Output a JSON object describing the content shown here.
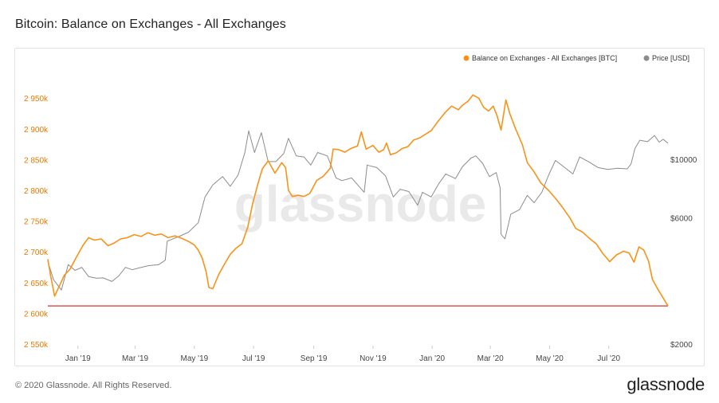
{
  "title": "Bitcoin: Balance on Exchanges - All Exchanges",
  "footer": {
    "copyright": "© 2020 Glassnode. All Rights Reserved.",
    "logo": "glassnode"
  },
  "watermark": "glassnode",
  "colors": {
    "balance": "#f7931a",
    "price": "#8c8c8c",
    "threshold": "#d9534f",
    "left_axis_text": "#e07b00",
    "right_axis_text": "#444444"
  },
  "chart_data": {
    "type": "line",
    "title": "Bitcoin: Balance on Exchanges - All Exchanges",
    "legend_position": "top-right",
    "legend": [
      "Balance on Exchanges - All Exchanges [BTC]",
      "Price [USD]"
    ],
    "x_ticks": [
      {
        "label": "Jan '19",
        "date": "2019-01-01"
      },
      {
        "label": "Mar '19",
        "date": "2019-03-01"
      },
      {
        "label": "May '19",
        "date": "2019-05-01"
      },
      {
        "label": "Jul '19",
        "date": "2019-07-01"
      },
      {
        "label": "Sep '19",
        "date": "2019-09-01"
      },
      {
        "label": "Nov '19",
        "date": "2019-11-01"
      },
      {
        "label": "Jan '20",
        "date": "2020-01-01"
      },
      {
        "label": "Mar '20",
        "date": "2020-03-01"
      },
      {
        "label": "May '20",
        "date": "2020-05-01"
      },
      {
        "label": "Jul '20",
        "date": "2020-07-01"
      }
    ],
    "xlim": [
      "2018-12-01",
      "2020-08-31"
    ],
    "y_left": {
      "label": "",
      "ylim": [
        2550000,
        2980000
      ],
      "ticks": [
        {
          "value": 2550000,
          "label": "2 550k"
        },
        {
          "value": 2600000,
          "label": "2 600k"
        },
        {
          "value": 2650000,
          "label": "2 650k"
        },
        {
          "value": 2700000,
          "label": "2 700k"
        },
        {
          "value": 2750000,
          "label": "2 750k"
        },
        {
          "value": 2800000,
          "label": "2 800k"
        },
        {
          "value": 2850000,
          "label": "2 850k"
        },
        {
          "value": 2900000,
          "label": "2 900k"
        },
        {
          "value": 2950000,
          "label": "2 950k"
        }
      ]
    },
    "y_right": {
      "label": "",
      "scale": "log",
      "ylim": [
        2000,
        20000
      ],
      "ticks": [
        {
          "value": 2000,
          "label": "$2000"
        },
        {
          "value": 6000,
          "label": "$6000"
        },
        {
          "value": 10000,
          "label": "$10000"
        }
      ]
    },
    "threshold": {
      "value": 2612000
    },
    "series": [
      {
        "name": "Balance on Exchanges - All Exchanges [BTC]",
        "axis": "left",
        "color": "#f7931a",
        "points": [
          [
            "2018-12-01",
            2688000
          ],
          [
            "2018-12-04",
            2660000
          ],
          [
            "2018-12-08",
            2628000
          ],
          [
            "2018-12-13",
            2645000
          ],
          [
            "2018-12-18",
            2662000
          ],
          [
            "2018-12-24",
            2672000
          ],
          [
            "2018-12-30",
            2690000
          ],
          [
            "2019-01-06",
            2710000
          ],
          [
            "2019-01-12",
            2723000
          ],
          [
            "2019-01-18",
            2719000
          ],
          [
            "2019-01-25",
            2721000
          ],
          [
            "2019-02-01",
            2710000
          ],
          [
            "2019-02-07",
            2714000
          ],
          [
            "2019-02-14",
            2721000
          ],
          [
            "2019-02-21",
            2723000
          ],
          [
            "2019-02-28",
            2728000
          ],
          [
            "2019-03-07",
            2725000
          ],
          [
            "2019-03-14",
            2731000
          ],
          [
            "2019-03-21",
            2727000
          ],
          [
            "2019-03-28",
            2729000
          ],
          [
            "2019-04-04",
            2723000
          ],
          [
            "2019-04-11",
            2726000
          ],
          [
            "2019-04-18",
            2722000
          ],
          [
            "2019-04-25",
            2717000
          ],
          [
            "2019-05-01",
            2711000
          ],
          [
            "2019-05-05",
            2703000
          ],
          [
            "2019-05-09",
            2690000
          ],
          [
            "2019-05-13",
            2668000
          ],
          [
            "2019-05-16",
            2642000
          ],
          [
            "2019-05-20",
            2640000
          ],
          [
            "2019-05-26",
            2663000
          ],
          [
            "2019-06-01",
            2680000
          ],
          [
            "2019-06-07",
            2696000
          ],
          [
            "2019-06-13",
            2706000
          ],
          [
            "2019-06-19",
            2713000
          ],
          [
            "2019-06-25",
            2740000
          ],
          [
            "2019-06-30",
            2778000
          ],
          [
            "2019-07-05",
            2808000
          ],
          [
            "2019-07-10",
            2835000
          ],
          [
            "2019-07-16",
            2848000
          ],
          [
            "2019-07-23",
            2828000
          ],
          [
            "2019-07-30",
            2845000
          ],
          [
            "2019-08-03",
            2837000
          ],
          [
            "2019-08-06",
            2800000
          ],
          [
            "2019-08-10",
            2790000
          ],
          [
            "2019-08-16",
            2792000
          ],
          [
            "2019-08-22",
            2790000
          ],
          [
            "2019-08-28",
            2795000
          ],
          [
            "2019-09-04",
            2816000
          ],
          [
            "2019-09-11",
            2823000
          ],
          [
            "2019-09-18",
            2836000
          ],
          [
            "2019-09-21",
            2867000
          ],
          [
            "2019-09-27",
            2866000
          ],
          [
            "2019-10-03",
            2862000
          ],
          [
            "2019-10-09",
            2868000
          ],
          [
            "2019-10-16",
            2872000
          ],
          [
            "2019-10-20",
            2895000
          ],
          [
            "2019-10-25",
            2867000
          ],
          [
            "2019-11-01",
            2873000
          ],
          [
            "2019-11-07",
            2862000
          ],
          [
            "2019-11-12",
            2866000
          ],
          [
            "2019-11-15",
            2877000
          ],
          [
            "2019-11-19",
            2858000
          ],
          [
            "2019-11-25",
            2861000
          ],
          [
            "2019-12-01",
            2868000
          ],
          [
            "2019-12-07",
            2871000
          ],
          [
            "2019-12-13",
            2882000
          ],
          [
            "2019-12-19",
            2885000
          ],
          [
            "2019-12-25",
            2891000
          ],
          [
            "2019-12-31",
            2897000
          ],
          [
            "2020-01-07",
            2912000
          ],
          [
            "2020-01-14",
            2926000
          ],
          [
            "2020-01-21",
            2937000
          ],
          [
            "2020-01-28",
            2931000
          ],
          [
            "2020-02-01",
            2938000
          ],
          [
            "2020-02-07",
            2945000
          ],
          [
            "2020-02-12",
            2955000
          ],
          [
            "2020-02-18",
            2950000
          ],
          [
            "2020-02-23",
            2935000
          ],
          [
            "2020-02-28",
            2929000
          ],
          [
            "2020-03-04",
            2937000
          ],
          [
            "2020-03-08",
            2921000
          ],
          [
            "2020-03-12",
            2898000
          ],
          [
            "2020-03-17",
            2947000
          ],
          [
            "2020-03-21",
            2925000
          ],
          [
            "2020-03-27",
            2900000
          ],
          [
            "2020-04-03",
            2874000
          ],
          [
            "2020-04-08",
            2845000
          ],
          [
            "2020-04-15",
            2830000
          ],
          [
            "2020-04-22",
            2812000
          ],
          [
            "2020-04-30",
            2800000
          ],
          [
            "2020-05-07",
            2787000
          ],
          [
            "2020-05-14",
            2773000
          ],
          [
            "2020-05-22",
            2755000
          ],
          [
            "2020-05-28",
            2738000
          ],
          [
            "2020-06-04",
            2732000
          ],
          [
            "2020-06-11",
            2722000
          ],
          [
            "2020-06-18",
            2713000
          ],
          [
            "2020-06-25",
            2697000
          ],
          [
            "2020-07-02",
            2684000
          ],
          [
            "2020-07-09",
            2695000
          ],
          [
            "2020-07-16",
            2701000
          ],
          [
            "2020-07-22",
            2698000
          ],
          [
            "2020-07-27",
            2683000
          ],
          [
            "2020-08-01",
            2708000
          ],
          [
            "2020-08-06",
            2703000
          ],
          [
            "2020-08-11",
            2685000
          ],
          [
            "2020-08-15",
            2655000
          ],
          [
            "2020-08-21",
            2638000
          ],
          [
            "2020-08-26",
            2625000
          ],
          [
            "2020-08-31",
            2612000
          ]
        ]
      },
      {
        "name": "Price [USD]",
        "axis": "right",
        "color": "#8c8c8c",
        "points": [
          [
            "2018-12-01",
            4100
          ],
          [
            "2018-12-07",
            3500
          ],
          [
            "2018-12-15",
            3200
          ],
          [
            "2018-12-22",
            4000
          ],
          [
            "2018-12-29",
            3800
          ],
          [
            "2019-01-05",
            3900
          ],
          [
            "2019-01-12",
            3600
          ],
          [
            "2019-01-20",
            3550
          ],
          [
            "2019-01-27",
            3560
          ],
          [
            "2019-02-05",
            3450
          ],
          [
            "2019-02-12",
            3620
          ],
          [
            "2019-02-19",
            3900
          ],
          [
            "2019-02-26",
            3820
          ],
          [
            "2019-03-05",
            3880
          ],
          [
            "2019-03-15",
            3960
          ],
          [
            "2019-03-25",
            3990
          ],
          [
            "2019-04-01",
            4150
          ],
          [
            "2019-04-03",
            4900
          ],
          [
            "2019-04-15",
            5100
          ],
          [
            "2019-04-25",
            5300
          ],
          [
            "2019-05-05",
            5750
          ],
          [
            "2019-05-12",
            7200
          ],
          [
            "2019-05-20",
            8000
          ],
          [
            "2019-05-30",
            8600
          ],
          [
            "2019-06-07",
            7900
          ],
          [
            "2019-06-15",
            8700
          ],
          [
            "2019-06-22",
            10600
          ],
          [
            "2019-06-26",
            12800
          ],
          [
            "2019-07-02",
            10600
          ],
          [
            "2019-07-09",
            12600
          ],
          [
            "2019-07-16",
            9800
          ],
          [
            "2019-07-24",
            9800
          ],
          [
            "2019-08-01",
            10500
          ],
          [
            "2019-08-06",
            12000
          ],
          [
            "2019-08-14",
            10300
          ],
          [
            "2019-08-22",
            10200
          ],
          [
            "2019-08-29",
            9500
          ],
          [
            "2019-09-05",
            10600
          ],
          [
            "2019-09-15",
            10300
          ],
          [
            "2019-09-24",
            8500
          ],
          [
            "2019-09-30",
            8300
          ],
          [
            "2019-10-10",
            8500
          ],
          [
            "2019-10-23",
            7500
          ],
          [
            "2019-10-26",
            9500
          ],
          [
            "2019-11-05",
            9300
          ],
          [
            "2019-11-14",
            8650
          ],
          [
            "2019-11-22",
            7200
          ],
          [
            "2019-11-29",
            7700
          ],
          [
            "2019-12-08",
            7550
          ],
          [
            "2019-12-17",
            6700
          ],
          [
            "2019-12-22",
            7500
          ],
          [
            "2019-12-31",
            7200
          ],
          [
            "2020-01-08",
            8100
          ],
          [
            "2020-01-15",
            8800
          ],
          [
            "2020-01-25",
            8450
          ],
          [
            "2020-02-01",
            9350
          ],
          [
            "2020-02-10",
            10100
          ],
          [
            "2020-02-15",
            10300
          ],
          [
            "2020-02-22",
            9650
          ],
          [
            "2020-02-29",
            8600
          ],
          [
            "2020-03-07",
            8900
          ],
          [
            "2020-03-11",
            7800
          ],
          [
            "2020-03-12",
            5200
          ],
          [
            "2020-03-16",
            5000
          ],
          [
            "2020-03-22",
            6200
          ],
          [
            "2020-03-31",
            6450
          ],
          [
            "2020-04-08",
            7300
          ],
          [
            "2020-04-15",
            6850
          ],
          [
            "2020-04-23",
            7500
          ],
          [
            "2020-04-30",
            8700
          ],
          [
            "2020-05-07",
            9900
          ],
          [
            "2020-05-15",
            9400
          ],
          [
            "2020-05-25",
            8800
          ],
          [
            "2020-06-01",
            10200
          ],
          [
            "2020-06-10",
            9800
          ],
          [
            "2020-06-20",
            9300
          ],
          [
            "2020-06-30",
            9150
          ],
          [
            "2020-07-10",
            9250
          ],
          [
            "2020-07-20",
            9200
          ],
          [
            "2020-07-24",
            9600
          ],
          [
            "2020-07-28",
            11000
          ],
          [
            "2020-08-02",
            11800
          ],
          [
            "2020-08-10",
            11650
          ],
          [
            "2020-08-17",
            12300
          ],
          [
            "2020-08-22",
            11600
          ],
          [
            "2020-08-26",
            11900
          ],
          [
            "2020-08-31",
            11500
          ]
        ]
      }
    ]
  }
}
